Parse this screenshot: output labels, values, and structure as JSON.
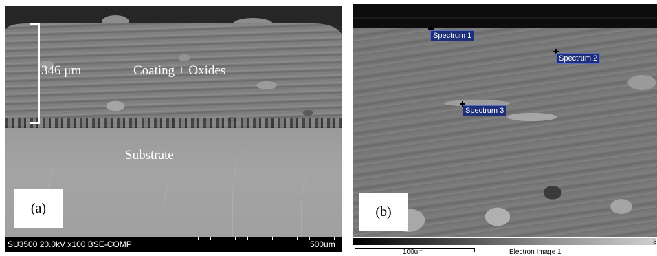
{
  "panel_a": {
    "thickness_label": "346 μm",
    "coating_label": "Coating + Oxides",
    "substrate_label": "Substrate",
    "panel_label": "(a)",
    "info_bar_text": "SU3500 20.0kV x100 BSE-COMP",
    "scale_bar_label": "500um"
  },
  "panel_b": {
    "panel_label": "(b)",
    "spectra": [
      {
        "label": "Spectrum 1"
      },
      {
        "label": "Spectrum 2"
      },
      {
        "label": "Spectrum 3"
      }
    ],
    "scale_bar_label": "100um",
    "image_label": "Electron Image 1",
    "edge_number": "3"
  }
}
